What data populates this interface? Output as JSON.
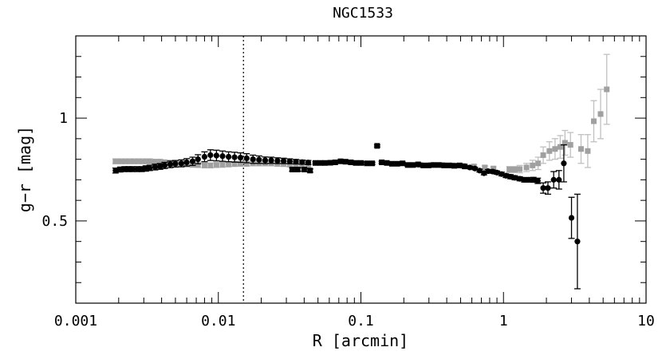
{
  "chart_data": {
    "type": "scatter",
    "title": "NGC1533",
    "xlabel": "R [arcmin]",
    "ylabel": "g−r [mag]",
    "x_scale": "log",
    "xlim": [
      0.001,
      10
    ],
    "ylim": [
      0.1,
      1.4
    ],
    "x_ticks": [
      {
        "value": 0.001,
        "label": "0.001"
      },
      {
        "value": 0.01,
        "label": "0.01"
      },
      {
        "value": 0.1,
        "label": "0.1"
      },
      {
        "value": 1,
        "label": "1"
      },
      {
        "value": 10,
        "label": "10"
      }
    ],
    "y_ticks": [
      {
        "value": 0.5,
        "label": "0.5"
      },
      {
        "value": 1,
        "label": "1"
      }
    ],
    "reference_line": {
      "x": 0.015,
      "style": "dotted"
    },
    "colors": {
      "dark": "#000000",
      "light": "#a0a0a0",
      "light_err": "#c0c0c0"
    },
    "series": [
      {
        "color": "light",
        "marker": "square",
        "points": [
          [
            0.0019,
            0.79,
            0.012
          ],
          [
            0.00205,
            0.79,
            0.012
          ],
          [
            0.0022,
            0.79,
            0.012
          ],
          [
            0.00235,
            0.79,
            0.012
          ],
          [
            0.0025,
            0.79,
            0.012
          ],
          [
            0.0027,
            0.79,
            0.012
          ],
          [
            0.0029,
            0.79,
            0.012
          ],
          [
            0.0031,
            0.79,
            0.012
          ],
          [
            0.0033,
            0.79,
            0.012
          ],
          [
            0.0036,
            0.788,
            0.012
          ],
          [
            0.0039,
            0.788,
            0.012
          ],
          [
            0.0042,
            0.785,
            0.012
          ],
          [
            0.0046,
            0.783,
            0.012
          ],
          [
            0.005,
            0.78,
            0.012
          ],
          [
            0.0055,
            0.778,
            0.012
          ],
          [
            0.006,
            0.775,
            0.012
          ],
          [
            0.0066,
            0.773,
            0.012
          ],
          [
            0.0072,
            0.772,
            0.012
          ],
          [
            0.008,
            0.77,
            0.012
          ],
          [
            0.0088,
            0.77,
            0.012
          ],
          [
            0.0097,
            0.772,
            0.012
          ],
          [
            0.0107,
            0.773,
            0.012
          ],
          [
            0.0118,
            0.775,
            0.012
          ],
          [
            0.013,
            0.777,
            0.012
          ],
          [
            0.0143,
            0.778,
            0.012
          ],
          [
            0.0158,
            0.778,
            0.012
          ],
          [
            0.0175,
            0.78,
            0.012
          ],
          [
            0.0193,
            0.78,
            0.012
          ],
          [
            0.0213,
            0.78,
            0.012
          ],
          [
            0.0235,
            0.78,
            0.012
          ],
          [
            0.026,
            0.778,
            0.012
          ],
          [
            0.0287,
            0.777,
            0.012
          ],
          [
            0.0317,
            0.775,
            0.012
          ],
          [
            0.035,
            0.772,
            0.012
          ],
          [
            0.0387,
            0.77,
            0.012
          ],
          [
            0.0427,
            0.77,
            0.012
          ],
          [
            0.22,
            0.772,
            0.008
          ],
          [
            0.26,
            0.772,
            0.008
          ],
          [
            0.31,
            0.772,
            0.008
          ],
          [
            0.37,
            0.772,
            0.008
          ],
          [
            0.44,
            0.77,
            0.008
          ],
          [
            0.52,
            0.768,
            0.008
          ],
          [
            0.62,
            0.765,
            0.008
          ],
          [
            0.74,
            0.76,
            0.008
          ],
          [
            0.85,
            0.755,
            0.008
          ],
          [
            1.1,
            0.75,
            0.015
          ],
          [
            1.2,
            0.75,
            0.015
          ],
          [
            1.3,
            0.752,
            0.018
          ],
          [
            1.45,
            0.76,
            0.02
          ],
          [
            1.6,
            0.77,
            0.025
          ],
          [
            1.75,
            0.78,
            0.03
          ],
          [
            1.9,
            0.82,
            0.04
          ],
          [
            2.1,
            0.84,
            0.045
          ],
          [
            2.3,
            0.85,
            0.05
          ],
          [
            2.5,
            0.86,
            0.055
          ],
          [
            2.7,
            0.88,
            0.06
          ],
          [
            2.95,
            0.87,
            0.06
          ],
          [
            3.5,
            0.85,
            0.07
          ],
          [
            3.9,
            0.84,
            0.08
          ],
          [
            4.3,
            0.985,
            0.1
          ],
          [
            4.8,
            1.02,
            0.12
          ],
          [
            5.3,
            1.14,
            0.17
          ]
        ]
      },
      {
        "color": "dark",
        "marker": "circle",
        "points": [
          [
            0.0019,
            0.745,
            0.012
          ],
          [
            0.00205,
            0.75,
            0.012
          ],
          [
            0.0022,
            0.752,
            0.012
          ],
          [
            0.00235,
            0.752,
            0.012
          ],
          [
            0.0025,
            0.752,
            0.012
          ],
          [
            0.0027,
            0.752,
            0.012
          ],
          [
            0.0029,
            0.752,
            0.012
          ],
          [
            0.0031,
            0.755,
            0.013
          ],
          [
            0.0033,
            0.758,
            0.013
          ],
          [
            0.0036,
            0.762,
            0.014
          ],
          [
            0.0039,
            0.765,
            0.014
          ],
          [
            0.0042,
            0.77,
            0.015
          ],
          [
            0.0046,
            0.775,
            0.016
          ],
          [
            0.005,
            0.778,
            0.016
          ],
          [
            0.0055,
            0.78,
            0.017
          ],
          [
            0.006,
            0.785,
            0.018
          ],
          [
            0.0066,
            0.79,
            0.02
          ],
          [
            0.0072,
            0.8,
            0.022
          ],
          [
            0.008,
            0.812,
            0.024
          ],
          [
            0.0088,
            0.82,
            0.026
          ],
          [
            0.0097,
            0.818,
            0.026
          ],
          [
            0.0107,
            0.815,
            0.025
          ],
          [
            0.0118,
            0.812,
            0.024
          ],
          [
            0.013,
            0.81,
            0.024
          ],
          [
            0.0143,
            0.808,
            0.023
          ],
          [
            0.0158,
            0.805,
            0.022
          ],
          [
            0.0175,
            0.8,
            0.02
          ],
          [
            0.0193,
            0.798,
            0.018
          ],
          [
            0.0213,
            0.795,
            0.016
          ],
          [
            0.0235,
            0.795,
            0.015
          ],
          [
            0.026,
            0.793,
            0.014
          ],
          [
            0.0287,
            0.792,
            0.013
          ],
          [
            0.0317,
            0.79,
            0.012
          ],
          [
            0.035,
            0.788,
            0.011
          ],
          [
            0.0387,
            0.786,
            0.01
          ],
          [
            0.0427,
            0.784,
            0.01
          ]
        ]
      },
      {
        "color": "dark",
        "marker": "square",
        "points": [
          [
            0.033,
            0.75,
            0.008
          ],
          [
            0.036,
            0.75,
            0.008
          ],
          [
            0.04,
            0.75,
            0.008
          ],
          [
            0.044,
            0.745,
            0.008
          ],
          [
            0.048,
            0.782,
            0.005
          ],
          [
            0.052,
            0.782,
            0.005
          ],
          [
            0.056,
            0.782,
            0.005
          ],
          [
            0.061,
            0.783,
            0.005
          ],
          [
            0.066,
            0.785,
            0.005
          ],
          [
            0.072,
            0.79,
            0.005
          ],
          [
            0.078,
            0.788,
            0.005
          ],
          [
            0.085,
            0.785,
            0.005
          ],
          [
            0.092,
            0.782,
            0.005
          ],
          [
            0.1,
            0.782,
            0.005
          ],
          [
            0.11,
            0.78,
            0.005
          ],
          [
            0.12,
            0.78,
            0.005
          ],
          [
            0.13,
            0.865,
            0.005
          ],
          [
            0.14,
            0.785,
            0.005
          ],
          [
            0.152,
            0.782,
            0.005
          ],
          [
            0.165,
            0.778,
            0.005
          ],
          [
            0.18,
            0.778,
            0.005
          ],
          [
            0.196,
            0.78,
            0.005
          ],
          [
            0.213,
            0.772,
            0.005
          ],
          [
            0.232,
            0.772,
            0.005
          ],
          [
            0.252,
            0.775,
            0.005
          ],
          [
            0.274,
            0.77,
            0.005
          ],
          [
            0.298,
            0.77,
            0.005
          ],
          [
            0.324,
            0.772,
            0.005
          ],
          [
            0.352,
            0.772,
            0.005
          ],
          [
            0.383,
            0.77,
            0.005
          ],
          [
            0.416,
            0.77,
            0.005
          ],
          [
            0.452,
            0.768,
            0.005
          ],
          [
            0.492,
            0.77,
            0.005
          ],
          [
            0.535,
            0.765,
            0.005
          ]
        ]
      },
      {
        "color": "dark",
        "marker": "circle",
        "points": [
          [
            0.58,
            0.76,
            0.006
          ],
          [
            0.63,
            0.755,
            0.006
          ],
          [
            0.68,
            0.745,
            0.007
          ],
          [
            0.73,
            0.732,
            0.008
          ],
          [
            0.78,
            0.742,
            0.008
          ],
          [
            0.84,
            0.74,
            0.008
          ],
          [
            0.9,
            0.735,
            0.008
          ],
          [
            0.97,
            0.728,
            0.009
          ],
          [
            1.04,
            0.72,
            0.009
          ],
          [
            1.12,
            0.715,
            0.01
          ],
          [
            1.2,
            0.71,
            0.01
          ],
          [
            1.3,
            0.705,
            0.01
          ],
          [
            1.4,
            0.7,
            0.011
          ],
          [
            1.5,
            0.7,
            0.011
          ],
          [
            1.62,
            0.7,
            0.012
          ],
          [
            1.74,
            0.695,
            0.013
          ],
          [
            1.9,
            0.66,
            0.025
          ],
          [
            2.05,
            0.66,
            0.03
          ],
          [
            2.25,
            0.7,
            0.04
          ],
          [
            2.45,
            0.7,
            0.045
          ],
          [
            2.65,
            0.78,
            0.09
          ],
          [
            3.0,
            0.515,
            0.1
          ],
          [
            3.3,
            0.4,
            0.23
          ]
        ]
      }
    ]
  }
}
